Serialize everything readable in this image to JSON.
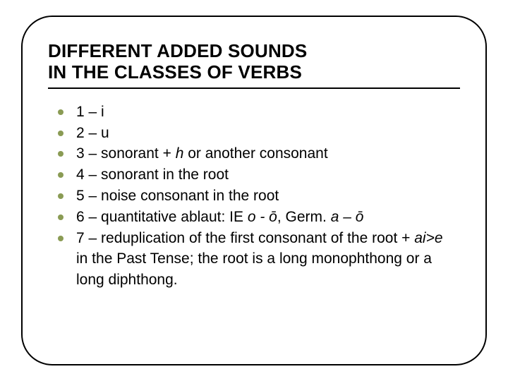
{
  "title_line1": "DIFFERENT ADDED SOUNDS",
  "title_line2": "IN THE CLASSES OF VERBS",
  "bullets": [
    {
      "text": "1 – i"
    },
    {
      "text": "2 – u"
    },
    {
      "prefix": "3 – sonorant + ",
      "italic": "h",
      "suffix": " or another consonant"
    },
    {
      "text": "4 – sonorant in the root"
    },
    {
      "text": "5 – noise consonant in the root"
    },
    {
      "prefix": "6 – quantitative ablaut: IE ",
      "italic": "o - ō",
      "mid": ", Germ. ",
      "italic2": "a – ō"
    },
    {
      "prefix": "7 – reduplication of the first consonant of the root + ",
      "italic": "ai>e",
      "suffix": " in the Past Tense; the root is a long monophthong or a long diphthong."
    }
  ],
  "colors": {
    "bullet_dot": "#8a9b54",
    "text": "#000000",
    "frame_border": "#000000",
    "background": "#ffffff"
  },
  "fonts": {
    "title_family": "Arial Black",
    "body_family": "Arial",
    "title_size_pt": 20,
    "body_size_pt": 16
  }
}
